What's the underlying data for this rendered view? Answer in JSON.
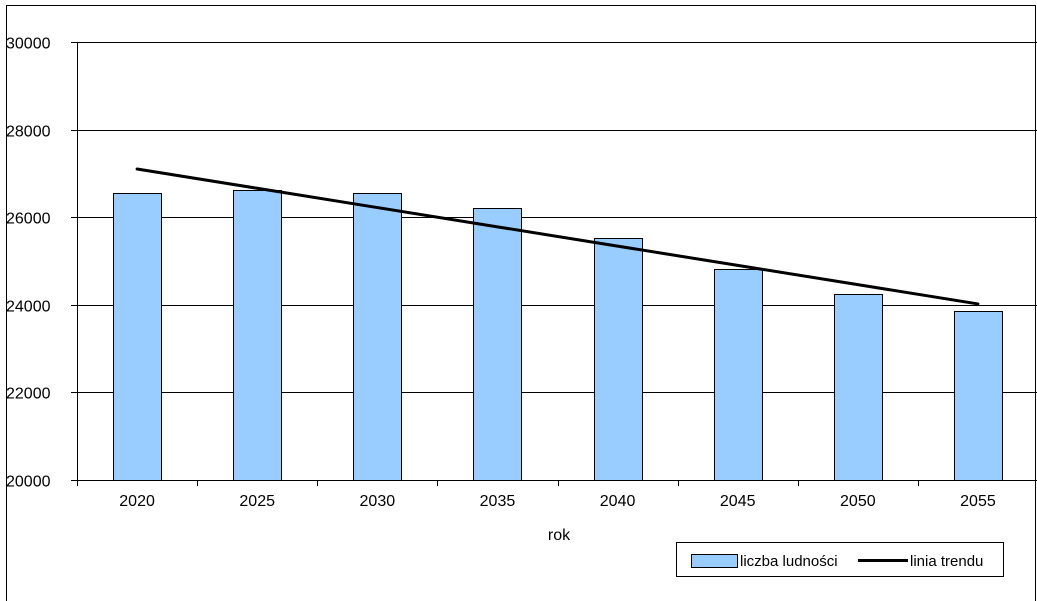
{
  "chart_data": {
    "type": "bar",
    "title": "",
    "xlabel": "rok",
    "ylabel": "",
    "categories": [
      "2020",
      "2025",
      "2030",
      "2035",
      "2040",
      "2045",
      "2050",
      "2055"
    ],
    "series": [
      {
        "name": "liczba ludności",
        "type": "bar",
        "color": "#99CCFF",
        "values": [
          26550,
          26620,
          26550,
          26200,
          25530,
          24820,
          24240,
          23860
        ]
      },
      {
        "name": "linia trendu",
        "type": "line",
        "color": "#000000",
        "values": [
          27100,
          26660,
          26220,
          25780,
          25340,
          24900,
          24460,
          24020
        ]
      }
    ],
    "ylim": [
      20000,
      30000
    ],
    "yticks": [
      "20000",
      "22000",
      "24000",
      "26000",
      "28000",
      "30000"
    ],
    "grid": true,
    "legend_position": "bottom-right"
  }
}
